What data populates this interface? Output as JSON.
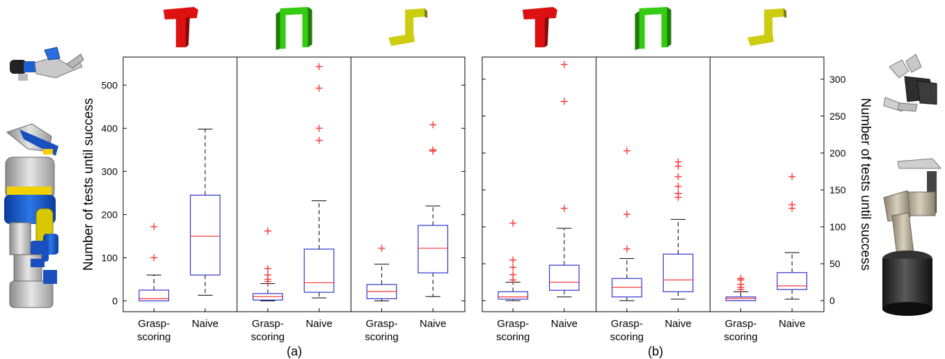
{
  "colors": {
    "box": "#3333cc",
    "median": "#ff3333",
    "outlier": "#ff3333",
    "whisker": "#000000",
    "t_shape": "#dd1111",
    "pi_shape": "#33cc11",
    "l_shape": "#cccc11"
  },
  "icons": {
    "shapes": [
      "t-shape-icon",
      "pi-shape-icon",
      "l-shape-icon"
    ],
    "left": [
      "robot-gripper-icon",
      "humanoid-robot-icon"
    ],
    "right": [
      "robot-hand-icon",
      "robot-arm-icon"
    ]
  },
  "chart_data": [
    {
      "type": "box",
      "caption": "(a)",
      "ylabel": "Number of tests until success",
      "ylim": [
        -25,
        565
      ],
      "yticks": [
        0,
        100,
        200,
        300,
        400,
        500
      ],
      "y_axis_side": "left",
      "groups": [
        {
          "shape": "t-shape-icon",
          "boxes": [
            {
              "category": "Grasp-scoring",
              "min": 0,
              "q1": 0,
              "median": 5,
              "q3": 25,
              "max": 60,
              "outliers": [
                100,
                172
              ]
            },
            {
              "category": "Naive",
              "min": 13,
              "q1": 60,
              "median": 150,
              "q3": 245,
              "max": 398,
              "outliers": []
            }
          ]
        },
        {
          "shape": "pi-shape-icon",
          "boxes": [
            {
              "category": "Grasp-scoring",
              "min": 0,
              "q1": 2,
              "median": 10,
              "q3": 17,
              "max": 40,
              "outliers": [
                45,
                50,
                60,
                75,
                162
              ]
            },
            {
              "category": "Naive",
              "min": 7,
              "q1": 20,
              "median": 42,
              "q3": 120,
              "max": 232,
              "outliers": [
                372,
                400,
                493,
                543
              ]
            }
          ]
        },
        {
          "shape": "l-shape-icon",
          "boxes": [
            {
              "category": "Grasp-scoring",
              "min": 0,
              "q1": 5,
              "median": 22,
              "q3": 38,
              "max": 85,
              "outliers": [
                122
              ]
            },
            {
              "category": "Naive",
              "min": 10,
              "q1": 65,
              "median": 122,
              "q3": 175,
              "max": 220,
              "outliers": [
                347,
                350,
                408
              ]
            }
          ]
        }
      ]
    },
    {
      "type": "box",
      "caption": "(b)",
      "ylabel": "Number of tests until success",
      "ylim": [
        -15,
        330
      ],
      "yticks": [
        0,
        50,
        100,
        150,
        200,
        250,
        300
      ],
      "y_axis_side": "right",
      "groups": [
        {
          "shape": "t-shape-icon",
          "boxes": [
            {
              "category": "Grasp-scoring",
              "min": 0,
              "q1": 2,
              "median": 5,
              "q3": 12,
              "max": 25,
              "outliers": [
                28,
                35,
                45,
                55,
                105
              ]
            },
            {
              "category": "Naive",
              "min": 5,
              "q1": 14,
              "median": 25,
              "q3": 48,
              "max": 98,
              "outliers": [
                125,
                270,
                320
              ]
            }
          ]
        },
        {
          "shape": "pi-shape-icon",
          "boxes": [
            {
              "category": "Grasp-scoring",
              "min": 0,
              "q1": 5,
              "median": 18,
              "q3": 30,
              "max": 57,
              "outliers": [
                70,
                117,
                203
              ]
            },
            {
              "category": "Naive",
              "min": 2,
              "q1": 12,
              "median": 28,
              "q3": 63,
              "max": 110,
              "outliers": [
                140,
                145,
                155,
                168,
                182,
                188
              ]
            }
          ]
        },
        {
          "shape": "l-shape-icon",
          "boxes": [
            {
              "category": "Grasp-scoring",
              "min": 0,
              "q1": 0,
              "median": 3,
              "q3": 5,
              "max": 12,
              "outliers": [
                15,
                18,
                22,
                28,
                30
              ]
            },
            {
              "category": "Naive",
              "min": 2,
              "q1": 15,
              "median": 20,
              "q3": 38,
              "max": 65,
              "outliers": [
                125,
                130,
                168
              ]
            }
          ]
        }
      ]
    }
  ]
}
